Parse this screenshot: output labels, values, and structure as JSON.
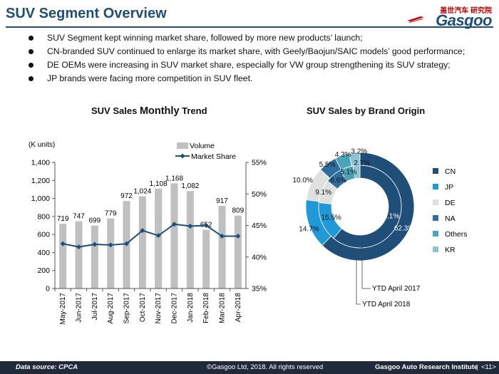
{
  "header": {
    "title": "SUV Segment Overview",
    "logo_text": "Gasgoo",
    "logo_cn": "盖世汽车 研究院"
  },
  "bullets": [
    "SUV Segment kept winning market share, followed by more new products’ launch;",
    "CN-branded SUV continued to enlarge its market share, with Geely/Baojun/SAIC models’ good performance;",
    "DE OEMs were increasing in SUV market share, especially for VW group strengthening its SUV strategy;",
    "JP brands were facing more competition in SUV fleet."
  ],
  "colors": {
    "title": "#1f4e79",
    "bar": "#c0c0c0",
    "line": "#1f4e79",
    "CN": "#1f4e79",
    "JP": "#1f9ad6",
    "DE": "#e0e0e0",
    "NA": "#2e6e9e",
    "Others": "#4aa3b8",
    "KR": "#8cc4d4"
  },
  "chart_data": [
    {
      "type": "bar",
      "title": "SUV Sales Monthly Trend",
      "title_parts": [
        "SUV Sales ",
        "Monthly",
        " Trend"
      ],
      "ylabel": "(K units)",
      "categories": [
        "May-2017",
        "Jun-2017",
        "Jul-2017",
        "Aug-2017",
        "Sep-2017",
        "Oct-2017",
        "Nov-2017",
        "Dec-2017",
        "Jan-2018",
        "Feb-2018",
        "Mar-2018",
        "Apr-2018"
      ],
      "series": [
        {
          "name": "Volume",
          "type": "bar",
          "values": [
            719,
            747,
            699,
            779,
            972,
            1024,
            1108,
            1168,
            1082,
            652,
            917,
            809
          ]
        },
        {
          "name": "Market Share",
          "type": "line",
          "axis": "right",
          "values": [
            42.1,
            41.6,
            42.0,
            41.9,
            42.1,
            44.2,
            43.4,
            45.2,
            44.9,
            45.0,
            43.3,
            43.3
          ]
        }
      ],
      "ylim": [
        0,
        1400
      ],
      "yticks": [
        "0",
        "200",
        "400",
        "600",
        "800",
        "1,000",
        "1,200",
        "1,400"
      ],
      "ylim_right": [
        35,
        55
      ],
      "yticks_right": [
        "35%",
        "40%",
        "45%",
        "50%",
        "55%"
      ],
      "data_labels": [
        "719",
        "747",
        "699",
        "779",
        "972",
        "1,024",
        "1,108",
        "1,168",
        "1,082",
        "652",
        "917",
        "809"
      ],
      "legend": "top-center",
      "grid": false
    },
    {
      "type": "pie",
      "subtype": "double-donut",
      "title": "SUV Sales by Brand Origin",
      "categories": [
        "CN",
        "JP",
        "DE",
        "NA",
        "Others",
        "KR"
      ],
      "series": [
        {
          "name": "YTD April 2018",
          "ring": "outer",
          "values": [
            62.3,
            14.7,
            10.0,
            5.5,
            4.3,
            3.2
          ]
        },
        {
          "name": "YTD April 2017",
          "ring": "inner",
          "values": [
            61.1,
            15.5,
            9.1,
            6.6,
            5.1,
            2.7
          ]
        }
      ],
      "outer_labels": [
        "62.3%",
        "14.7%",
        "10.0%",
        "5.5%",
        "4.3%",
        "3.2%"
      ],
      "inner_labels": [
        "61.1%",
        "15.5%",
        "9.1%",
        "6.6%",
        "5.1%",
        "2.7%"
      ],
      "legend": "right"
    }
  ],
  "footer": {
    "source": "Data source: CPCA",
    "copyright": "©Gasgoo Ltd, 2018.  All rights reserved",
    "institute": "Gasgoo Auto Research Institute",
    "page": "<11>"
  }
}
